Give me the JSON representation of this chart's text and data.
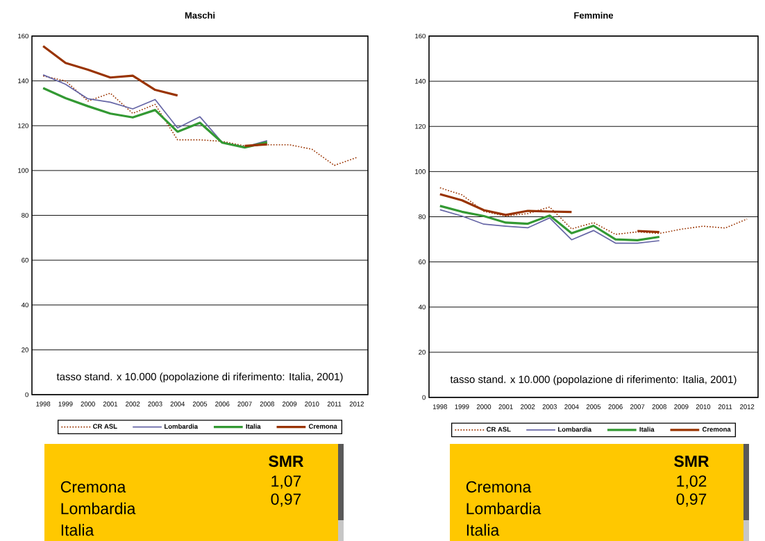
{
  "chart_data": [
    {
      "type": "line",
      "title": "Maschi",
      "categories": [
        "1998",
        "1999",
        "2000",
        "2001",
        "2002",
        "2003",
        "2004",
        "2005",
        "2006",
        "2007",
        "2008",
        "2009",
        "2010",
        "2011",
        "2012"
      ],
      "ylim": [
        0,
        160
      ],
      "yticks": [
        0,
        20,
        40,
        60,
        80,
        100,
        120,
        140,
        160
      ],
      "grid": "y",
      "legend": "bottom",
      "annotations": [
        "tasso stand. x 10.000 (popolazione di riferimento: Italia, 2001)"
      ],
      "series": [
        {
          "name": "CR ASL",
          "color": "#993300",
          "line_style": "dotted",
          "values": [
            142.2,
            140,
            131,
            134.5,
            125.5,
            129.5,
            113.7,
            113.7,
            113,
            111,
            111.5,
            111.5,
            109.5,
            102.3,
            105.8
          ]
        },
        {
          "name": "Lombardia",
          "color": "#6666a6",
          "line_style": "solid",
          "values": [
            142.7,
            138.5,
            132,
            130.5,
            127.5,
            131.7,
            119,
            124,
            112.5,
            110.5,
            113.3,
            null,
            null,
            null,
            null
          ]
        },
        {
          "name": "Italia",
          "color": "#339933",
          "line_style": "solid",
          "values": [
            136.8,
            132.3,
            128.7,
            125.4,
            123.7,
            127,
            117.3,
            121.3,
            112.4,
            110.3,
            112.6,
            null,
            null,
            null,
            null
          ]
        },
        {
          "name": "Cremona",
          "color": "#993300",
          "line_style": "solid",
          "values": [
            155.5,
            148,
            145,
            141.5,
            142.3,
            136,
            133.5,
            null,
            null,
            111,
            111.7,
            null,
            null,
            null,
            null
          ]
        }
      ]
    },
    {
      "type": "line",
      "title": "Femmine",
      "categories": [
        "1998",
        "1999",
        "2000",
        "2001",
        "2002",
        "2003",
        "2004",
        "2005",
        "2006",
        "2007",
        "2008",
        "2009",
        "2010",
        "2011",
        "2012"
      ],
      "ylim": [
        0,
        160
      ],
      "yticks": [
        0,
        20,
        40,
        60,
        80,
        100,
        120,
        140,
        160
      ],
      "grid": "y",
      "legend": "bottom",
      "annotations": [
        "tasso stand. x 10.000 (popolazione di riferimento: Italia, 2001)"
      ],
      "series": [
        {
          "name": "CR ASL",
          "color": "#993300",
          "line_style": "dotted",
          "values": [
            92.8,
            89.7,
            82.4,
            80.3,
            81.4,
            84.3,
            74.6,
            77.4,
            72.2,
            73.3,
            72.6,
            74.5,
            75.8,
            75,
            79
          ]
        },
        {
          "name": "Lombardia",
          "color": "#6666a6",
          "line_style": "solid",
          "values": [
            83.1,
            80.3,
            76.7,
            75.8,
            75.1,
            79.5,
            69.8,
            73.9,
            68.3,
            68.3,
            69.4,
            null,
            null,
            null,
            null
          ]
        },
        {
          "name": "Italia",
          "color": "#339933",
          "line_style": "solid",
          "values": [
            84.8,
            82.2,
            80.3,
            77.4,
            76.9,
            80.5,
            72.7,
            76,
            70,
            69.6,
            71.1,
            null,
            null,
            null,
            null
          ]
        },
        {
          "name": "Cremona",
          "color": "#993300",
          "line_style": "solid",
          "values": [
            90,
            87.3,
            82.9,
            80.8,
            82.6,
            82.3,
            82.1,
            null,
            null,
            73.7,
            73.2,
            null,
            null,
            null,
            null
          ]
        }
      ]
    },
    {
      "type": "other",
      "annotations": [
        "SMR",
        "Cremona",
        "1,07",
        "Lombardia",
        "0,97",
        "Italia"
      ]
    },
    {
      "type": "other",
      "annotations": [
        "SMR",
        "Cremona",
        "1,02",
        "Lombardia",
        "0,97",
        "Italia"
      ]
    }
  ]
}
